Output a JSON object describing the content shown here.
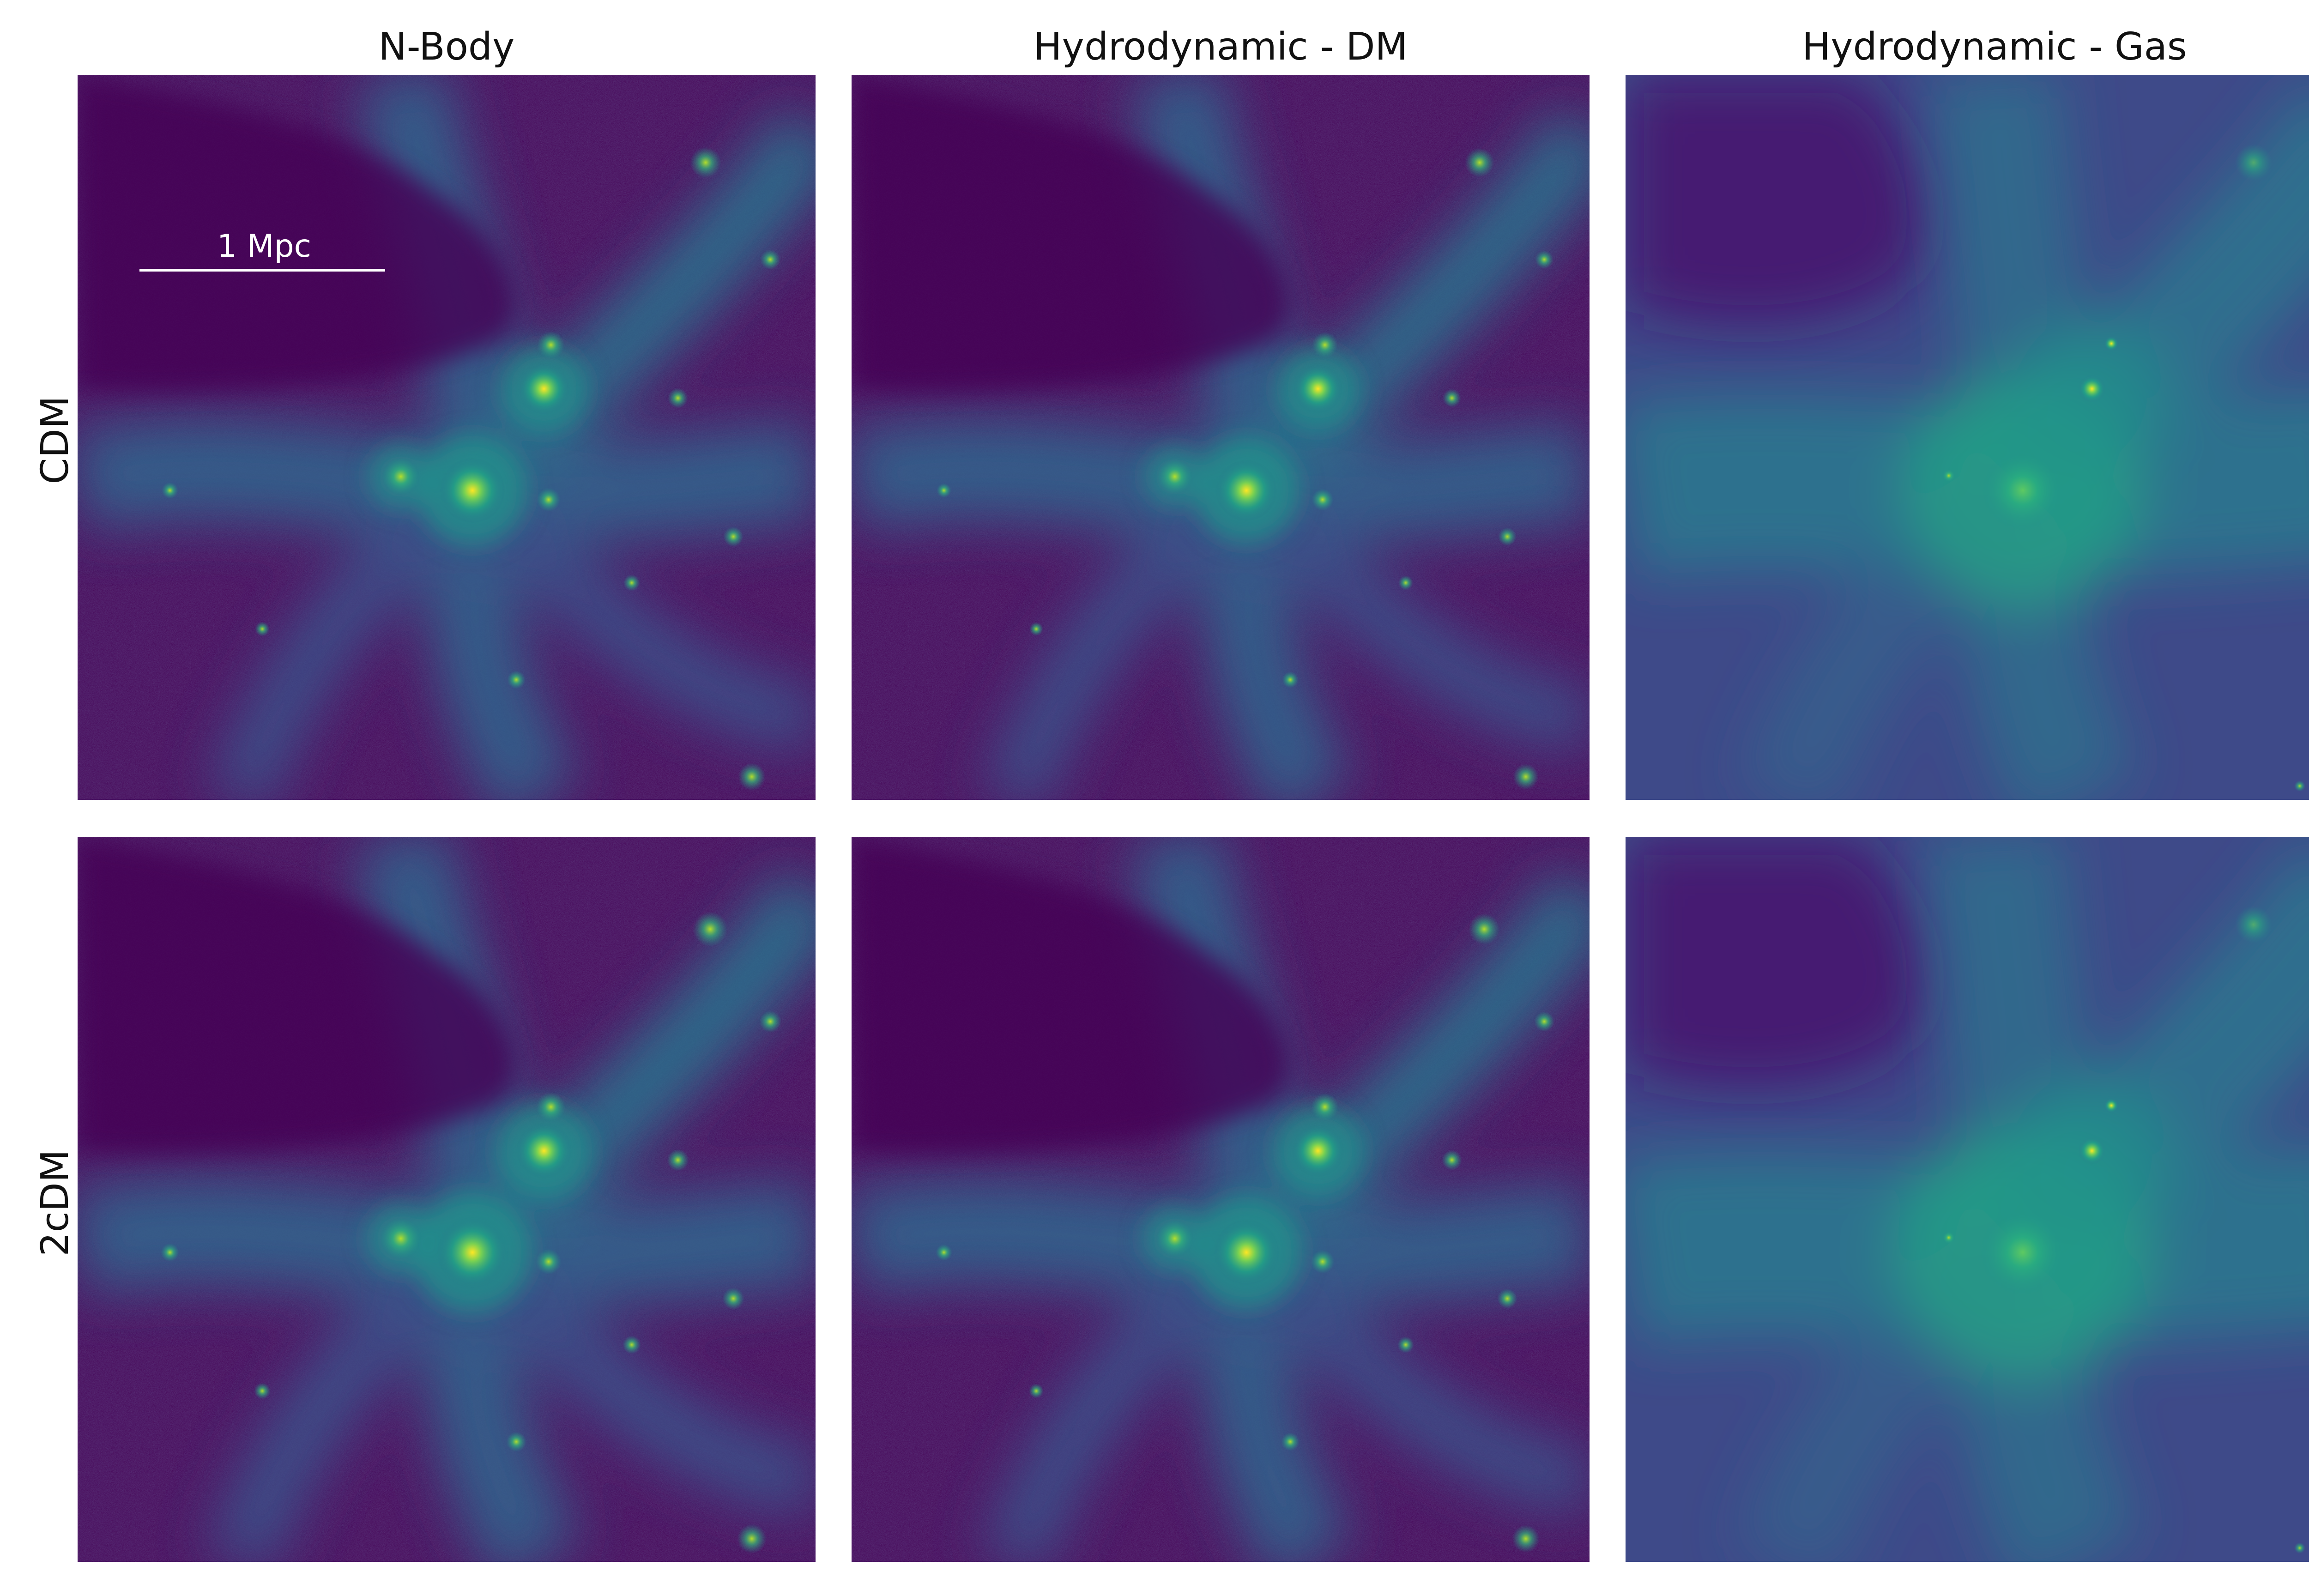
{
  "figure": {
    "columns": [
      {
        "title": "N-Body"
      },
      {
        "title": "Hydrodynamic - DM"
      },
      {
        "title": "Hydrodynamic - Gas"
      }
    ],
    "rows": [
      {
        "label": "CDM"
      },
      {
        "label": "2cDM"
      }
    ],
    "scalebar": {
      "label": "1 Mpc"
    },
    "colormap": {
      "low": "#440154",
      "mid_low": "#3b528b",
      "mid": "#21918c",
      "mid_high": "#5ec962",
      "high": "#fde725"
    }
  }
}
